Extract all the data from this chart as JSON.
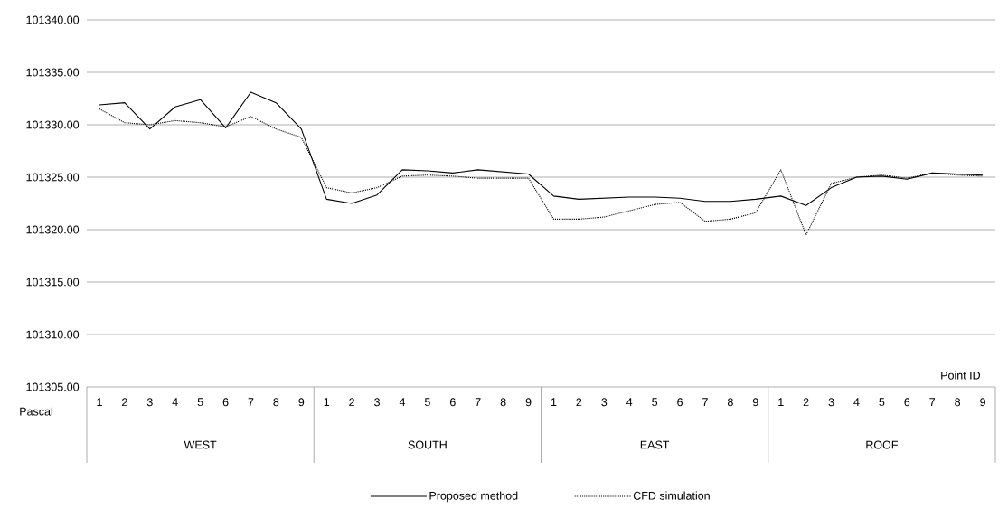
{
  "chart_data": {
    "type": "line",
    "xlabel": "Point ID",
    "ylabel": "Pascal",
    "categories": [
      "1",
      "2",
      "3",
      "4",
      "5",
      "6",
      "7",
      "8",
      "9",
      "1",
      "2",
      "3",
      "4",
      "5",
      "6",
      "7",
      "8",
      "9",
      "1",
      "2",
      "3",
      "4",
      "5",
      "6",
      "7",
      "8",
      "9",
      "1",
      "2",
      "3",
      "4",
      "5",
      "6",
      "7",
      "8",
      "9"
    ],
    "annotations": [
      "WEST",
      "SOUTH",
      "EAST",
      "ROOF"
    ],
    "series": [
      {
        "name": "Proposed method",
        "color": "#000000",
        "line_style": "solid",
        "values": [
          101331.9,
          101332.1,
          101329.6,
          101331.7,
          101332.4,
          101329.7,
          101333.1,
          101332.1,
          101329.6,
          101322.9,
          101322.5,
          101323.3,
          101325.7,
          101325.6,
          101325.4,
          101325.7,
          101325.5,
          101325.3,
          101323.2,
          101322.9,
          101323.0,
          101323.1,
          101323.1,
          101323.0,
          101322.7,
          101322.7,
          101322.9,
          101323.2,
          101322.3,
          101324.0,
          101325.0,
          101325.1,
          101324.8,
          101325.4,
          101325.3,
          101325.2
        ]
      },
      {
        "name": "CFD simulation",
        "color": "#000000",
        "line_style": "dotted",
        "values": [
          101331.5,
          101330.2,
          101330.0,
          101330.4,
          101330.2,
          101329.8,
          101330.8,
          101329.6,
          101328.8,
          101324.0,
          101323.5,
          101324.0,
          101325.1,
          101325.2,
          101325.1,
          101324.9,
          101324.9,
          101324.9,
          101321.0,
          101321.0,
          101321.2,
          101321.8,
          101322.4,
          101322.6,
          101320.8,
          101321.0,
          101321.6,
          101325.7,
          101319.5,
          101324.4,
          101325.0,
          101325.2,
          101324.9,
          101325.4,
          101325.2,
          101325.1
        ]
      }
    ],
    "ylim": [
      101305,
      101340
    ],
    "yticks": [
      {
        "value": 101305,
        "label": "101305.00"
      },
      {
        "value": 101310,
        "label": "101310.00"
      },
      {
        "value": 101315,
        "label": "101315.00"
      },
      {
        "value": 101320,
        "label": "101320.00"
      },
      {
        "value": 101325,
        "label": "101325.00"
      },
      {
        "value": 101330,
        "label": "101330.00"
      },
      {
        "value": 101335,
        "label": "101335.00"
      },
      {
        "value": 101340,
        "label": "101340.00"
      }
    ],
    "grid": "y",
    "legend": "bottom",
    "marker": "none"
  }
}
